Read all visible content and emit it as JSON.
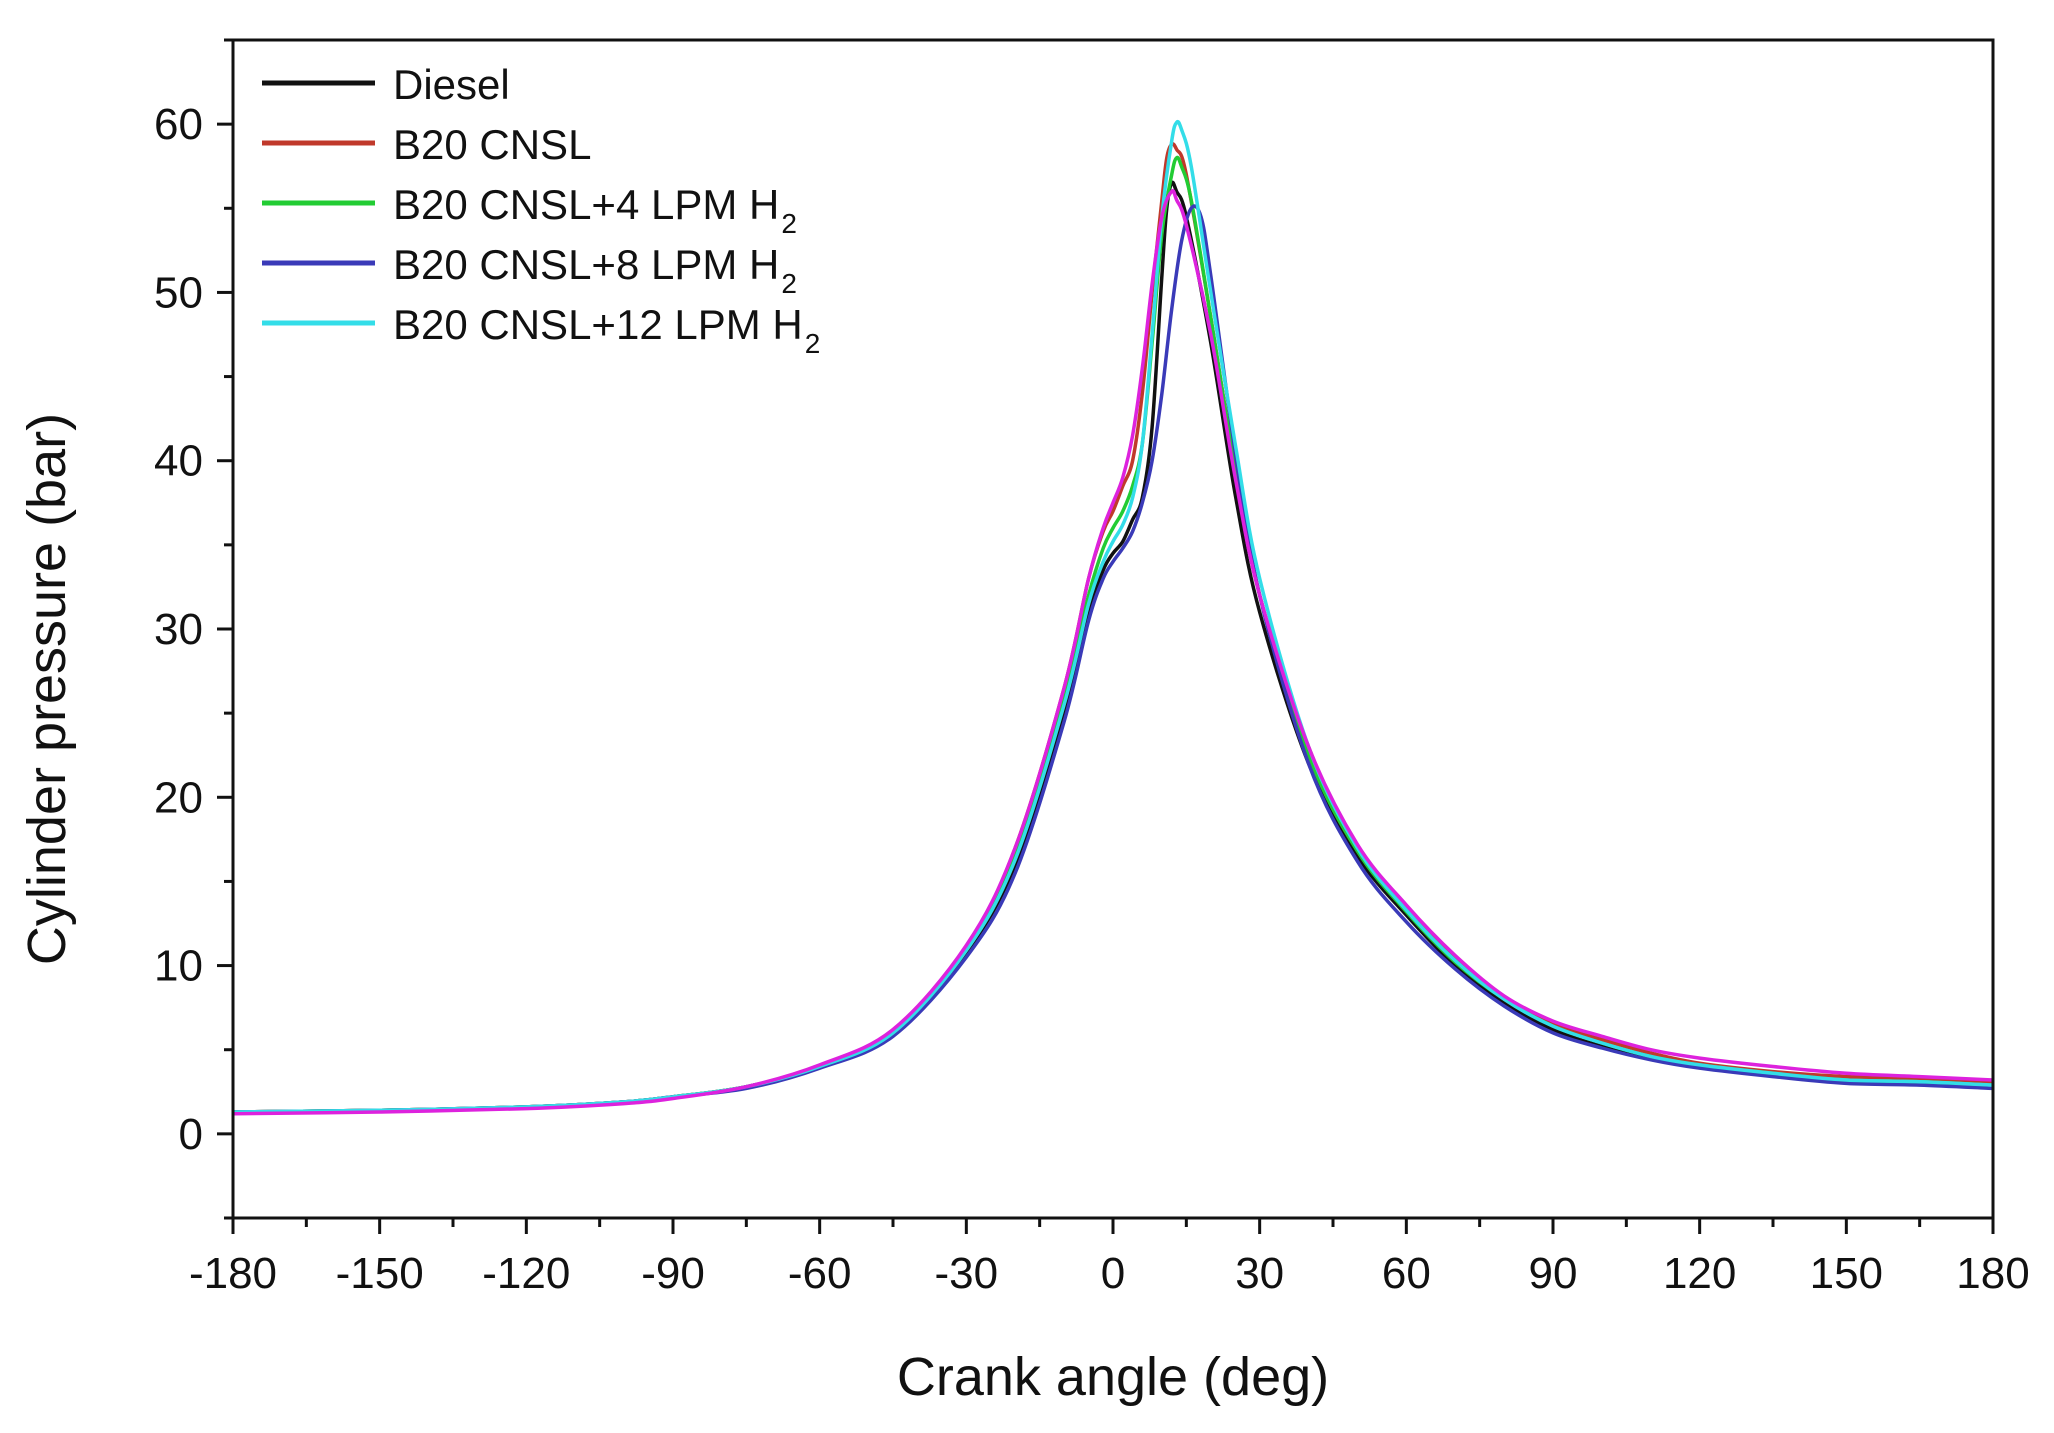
{
  "chart_data": {
    "type": "line",
    "title": "",
    "xlabel": "Crank angle (deg)",
    "ylabel": "Cylinder pressure (bar)",
    "xlim": [
      -180,
      180
    ],
    "ylim": [
      -5,
      65
    ],
    "xticks": [
      -180,
      -150,
      -120,
      -90,
      -60,
      -30,
      0,
      30,
      60,
      90,
      120,
      150,
      180
    ],
    "yticks": [
      0,
      10,
      20,
      30,
      40,
      50,
      60
    ],
    "legend_position": "top-left",
    "series": [
      {
        "name": "Diesel",
        "legend_main": "Diesel",
        "legend_sub": "",
        "color": "#111111",
        "points": [
          [
            -180,
            1.3
          ],
          [
            -150,
            1.4
          ],
          [
            -120,
            1.6
          ],
          [
            -100,
            1.9
          ],
          [
            -90,
            2.2
          ],
          [
            -75,
            2.8
          ],
          [
            -60,
            4.0
          ],
          [
            -45,
            6.0
          ],
          [
            -30,
            10.8
          ],
          [
            -20,
            16.0
          ],
          [
            -10,
            25.0
          ],
          [
            -5,
            31.0
          ],
          [
            -2,
            33.5
          ],
          [
            0,
            34.5
          ],
          [
            2,
            35.2
          ],
          [
            4,
            36.5
          ],
          [
            6,
            37.8
          ],
          [
            8,
            42.0
          ],
          [
            10,
            51.0
          ],
          [
            11,
            55.0
          ],
          [
            12,
            56.5
          ],
          [
            13,
            56.0
          ],
          [
            15,
            54.5
          ],
          [
            20,
            47.0
          ],
          [
            25,
            38.0
          ],
          [
            30,
            31.0
          ],
          [
            40,
            22.0
          ],
          [
            50,
            16.5
          ],
          [
            60,
            13.0
          ],
          [
            70,
            10.0
          ],
          [
            80,
            7.8
          ],
          [
            90,
            6.2
          ],
          [
            100,
            5.2
          ],
          [
            110,
            4.5
          ],
          [
            120,
            4.0
          ],
          [
            135,
            3.5
          ],
          [
            150,
            3.1
          ],
          [
            165,
            3.0
          ],
          [
            180,
            2.8
          ]
        ]
      },
      {
        "name": "B20 CNSL",
        "legend_main": "B20 CNSL",
        "legend_sub": "",
        "color": "#c0392b",
        "points": [
          [
            -180,
            1.3
          ],
          [
            -150,
            1.4
          ],
          [
            -120,
            1.6
          ],
          [
            -100,
            1.9
          ],
          [
            -90,
            2.2
          ],
          [
            -75,
            2.8
          ],
          [
            -60,
            4.0
          ],
          [
            -45,
            6.0
          ],
          [
            -30,
            11.0
          ],
          [
            -20,
            17.0
          ],
          [
            -10,
            26.5
          ],
          [
            -5,
            33.0
          ],
          [
            -2,
            35.8
          ],
          [
            0,
            37.0
          ],
          [
            2,
            38.5
          ],
          [
            4,
            40.0
          ],
          [
            6,
            44.0
          ],
          [
            8,
            50.0
          ],
          [
            10,
            55.5
          ],
          [
            11,
            58.0
          ],
          [
            12,
            58.8
          ],
          [
            13,
            58.5
          ],
          [
            15,
            57.0
          ],
          [
            20,
            48.5
          ],
          [
            25,
            39.5
          ],
          [
            30,
            32.0
          ],
          [
            40,
            23.0
          ],
          [
            50,
            17.0
          ],
          [
            60,
            13.5
          ],
          [
            70,
            10.5
          ],
          [
            80,
            8.0
          ],
          [
            90,
            6.5
          ],
          [
            100,
            5.6
          ],
          [
            110,
            4.8
          ],
          [
            120,
            4.2
          ],
          [
            135,
            3.7
          ],
          [
            150,
            3.4
          ],
          [
            165,
            3.3
          ],
          [
            180,
            3.1
          ]
        ]
      },
      {
        "name": "B20 CNSL+4 LPM H2",
        "legend_main": "B20 CNSL+4 LPM H",
        "legend_sub": "2",
        "color": "#22cc33",
        "points": [
          [
            -180,
            1.3
          ],
          [
            -150,
            1.4
          ],
          [
            -120,
            1.6
          ],
          [
            -100,
            1.9
          ],
          [
            -90,
            2.2
          ],
          [
            -75,
            2.8
          ],
          [
            -60,
            4.0
          ],
          [
            -45,
            6.0
          ],
          [
            -30,
            10.9
          ],
          [
            -20,
            16.5
          ],
          [
            -10,
            26.0
          ],
          [
            -5,
            32.0
          ],
          [
            -2,
            34.8
          ],
          [
            0,
            36.0
          ],
          [
            2,
            37.0
          ],
          [
            4,
            38.5
          ],
          [
            6,
            41.0
          ],
          [
            8,
            47.0
          ],
          [
            10,
            53.5
          ],
          [
            12,
            57.0
          ],
          [
            13,
            58.0
          ],
          [
            14,
            57.5
          ],
          [
            16,
            55.5
          ],
          [
            20,
            48.5
          ],
          [
            25,
            39.5
          ],
          [
            30,
            32.0
          ],
          [
            40,
            22.5
          ],
          [
            50,
            16.8
          ],
          [
            60,
            13.2
          ],
          [
            70,
            10.2
          ],
          [
            80,
            8.0
          ],
          [
            90,
            6.4
          ],
          [
            100,
            5.4
          ],
          [
            110,
            4.6
          ],
          [
            120,
            4.1
          ],
          [
            135,
            3.6
          ],
          [
            150,
            3.2
          ],
          [
            165,
            3.1
          ],
          [
            180,
            2.9
          ]
        ]
      },
      {
        "name": "B20 CNSL+8 LPM H2",
        "legend_main": "B20 CNSL+8 LPM H",
        "legend_sub": "2",
        "color": "#3a3ab8",
        "points": [
          [
            -180,
            1.3
          ],
          [
            -150,
            1.4
          ],
          [
            -120,
            1.6
          ],
          [
            -100,
            1.9
          ],
          [
            -90,
            2.2
          ],
          [
            -75,
            2.7
          ],
          [
            -60,
            3.9
          ],
          [
            -45,
            5.8
          ],
          [
            -30,
            10.5
          ],
          [
            -20,
            15.5
          ],
          [
            -10,
            24.5
          ],
          [
            -5,
            30.5
          ],
          [
            -2,
            33.0
          ],
          [
            0,
            34.0
          ],
          [
            2,
            34.8
          ],
          [
            4,
            35.8
          ],
          [
            6,
            37.5
          ],
          [
            8,
            40.0
          ],
          [
            10,
            44.0
          ],
          [
            12,
            49.0
          ],
          [
            14,
            53.0
          ],
          [
            16,
            55.0
          ],
          [
            18,
            54.5
          ],
          [
            20,
            51.0
          ],
          [
            25,
            40.5
          ],
          [
            30,
            32.0
          ],
          [
            40,
            22.0
          ],
          [
            50,
            16.2
          ],
          [
            60,
            12.6
          ],
          [
            70,
            9.8
          ],
          [
            80,
            7.6
          ],
          [
            90,
            6.0
          ],
          [
            100,
            5.1
          ],
          [
            110,
            4.4
          ],
          [
            120,
            3.9
          ],
          [
            135,
            3.4
          ],
          [
            150,
            3.0
          ],
          [
            165,
            2.9
          ],
          [
            180,
            2.7
          ]
        ]
      },
      {
        "name": "B20 CNSL+12 LPM H2",
        "legend_main": "B20 CNSL+12 LPM H",
        "legend_sub": "2",
        "color": "#33dde8",
        "points": [
          [
            -180,
            1.3
          ],
          [
            -150,
            1.4
          ],
          [
            -120,
            1.6
          ],
          [
            -100,
            1.9
          ],
          [
            -90,
            2.2
          ],
          [
            -75,
            2.8
          ],
          [
            -60,
            4.0
          ],
          [
            -45,
            6.0
          ],
          [
            -30,
            10.9
          ],
          [
            -20,
            16.3
          ],
          [
            -10,
            25.5
          ],
          [
            -5,
            31.5
          ],
          [
            -2,
            34.0
          ],
          [
            0,
            35.2
          ],
          [
            2,
            36.2
          ],
          [
            4,
            37.8
          ],
          [
            6,
            41.0
          ],
          [
            8,
            47.5
          ],
          [
            10,
            54.5
          ],
          [
            12,
            59.0
          ],
          [
            13,
            60.1
          ],
          [
            14,
            59.7
          ],
          [
            16,
            57.5
          ],
          [
            20,
            50.0
          ],
          [
            25,
            41.0
          ],
          [
            30,
            33.0
          ],
          [
            40,
            23.0
          ],
          [
            50,
            17.0
          ],
          [
            60,
            13.3
          ],
          [
            70,
            10.3
          ],
          [
            80,
            8.0
          ],
          [
            90,
            6.4
          ],
          [
            100,
            5.4
          ],
          [
            110,
            4.6
          ],
          [
            120,
            4.1
          ],
          [
            135,
            3.6
          ],
          [
            150,
            3.2
          ],
          [
            165,
            3.1
          ],
          [
            180,
            2.9
          ]
        ]
      },
      {
        "name": "",
        "legend_main": "",
        "legend_sub": "",
        "color": "#dd22dd",
        "points": [
          [
            -180,
            1.2
          ],
          [
            -150,
            1.3
          ],
          [
            -120,
            1.5
          ],
          [
            -100,
            1.8
          ],
          [
            -90,
            2.1
          ],
          [
            -75,
            2.8
          ],
          [
            -60,
            4.1
          ],
          [
            -45,
            6.2
          ],
          [
            -30,
            11.2
          ],
          [
            -20,
            17.0
          ],
          [
            -10,
            26.5
          ],
          [
            -5,
            33.0
          ],
          [
            -2,
            36.0
          ],
          [
            0,
            37.5
          ],
          [
            2,
            39.0
          ],
          [
            4,
            41.5
          ],
          [
            6,
            45.5
          ],
          [
            8,
            50.5
          ],
          [
            10,
            54.5
          ],
          [
            12,
            56.0
          ],
          [
            13,
            55.5
          ],
          [
            15,
            54.0
          ],
          [
            20,
            47.5
          ],
          [
            25,
            39.0
          ],
          [
            30,
            32.0
          ],
          [
            40,
            23.0
          ],
          [
            50,
            17.2
          ],
          [
            60,
            13.6
          ],
          [
            70,
            10.6
          ],
          [
            80,
            8.2
          ],
          [
            90,
            6.7
          ],
          [
            100,
            5.8
          ],
          [
            110,
            5.0
          ],
          [
            120,
            4.5
          ],
          [
            135,
            4.0
          ],
          [
            150,
            3.6
          ],
          [
            165,
            3.4
          ],
          [
            180,
            3.2
          ]
        ]
      }
    ]
  }
}
